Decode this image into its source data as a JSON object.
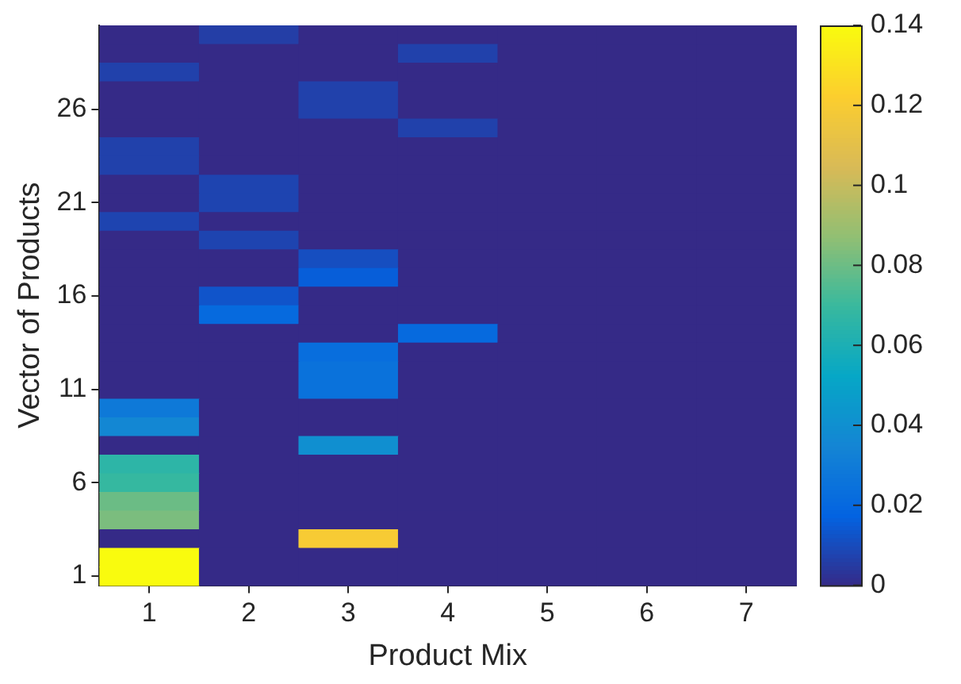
{
  "chart_data": {
    "type": "heatmap",
    "xlabel": "Product Mix",
    "ylabel": "Vector of Products",
    "categories": [
      "1",
      "2",
      "3",
      "4",
      "5",
      "6",
      "7"
    ],
    "y_categories": [
      null,
      null,
      null,
      null,
      "26",
      null,
      null,
      null,
      null,
      "21",
      null,
      null,
      null,
      null,
      "16",
      null,
      null,
      null,
      null,
      "11",
      null,
      null,
      null,
      null,
      "6",
      null,
      null,
      null,
      null,
      "1"
    ],
    "cells": [
      [
        0,
        0.006,
        0,
        0,
        0,
        0,
        0
      ],
      [
        0,
        0,
        0,
        0.007,
        0,
        0,
        0
      ],
      [
        0.007,
        0,
        0,
        0,
        0,
        0,
        0
      ],
      [
        0,
        0,
        0.007,
        0,
        0,
        0,
        0
      ],
      [
        0,
        0,
        0.007,
        0,
        0,
        0,
        0
      ],
      [
        0,
        0,
        0,
        0.007,
        0,
        0,
        0
      ],
      [
        0.007,
        0,
        0,
        0,
        0,
        0,
        0
      ],
      [
        0.007,
        0,
        0,
        0,
        0,
        0,
        0
      ],
      [
        0,
        0.008,
        0,
        0,
        0,
        0,
        0
      ],
      [
        0,
        0.008,
        0,
        0,
        0,
        0,
        0
      ],
      [
        0.008,
        0,
        0,
        0,
        0,
        0,
        0
      ],
      [
        0,
        0.008,
        0,
        0,
        0,
        0,
        0
      ],
      [
        0,
        0,
        0.011,
        0,
        0,
        0,
        0
      ],
      [
        0,
        0,
        0.016,
        0,
        0,
        0,
        0
      ],
      [
        0,
        0.013,
        0,
        0,
        0,
        0,
        0
      ],
      [
        0,
        0.021,
        0,
        0,
        0,
        0,
        0
      ],
      [
        0,
        0,
        0,
        0.021,
        0,
        0,
        0
      ],
      [
        0,
        0,
        0.023,
        0,
        0,
        0,
        0
      ],
      [
        0,
        0,
        0.025,
        0,
        0,
        0,
        0
      ],
      [
        0,
        0,
        0.025,
        0,
        0,
        0,
        0
      ],
      [
        0.029,
        0,
        0,
        0,
        0,
        0,
        0
      ],
      [
        0.036,
        0,
        0,
        0,
        0,
        0,
        0
      ],
      [
        0,
        0,
        0.04,
        0,
        0,
        0,
        0
      ],
      [
        0.066,
        0,
        0,
        0,
        0,
        0,
        0
      ],
      [
        0.069,
        0,
        0,
        0,
        0,
        0,
        0
      ],
      [
        0.08,
        0,
        0,
        0,
        0,
        0,
        0
      ],
      [
        0.083,
        0,
        0,
        0,
        0,
        0,
        0
      ],
      [
        0,
        0,
        0.12,
        0,
        0,
        0,
        0
      ],
      [
        0.14,
        0,
        0,
        0,
        0,
        0,
        0
      ],
      [
        0.14,
        0,
        0,
        0,
        0,
        0,
        0
      ]
    ],
    "clim": [
      0,
      0.14
    ],
    "cticks": [
      0,
      0.02,
      0.04,
      0.06,
      0.08,
      0.1,
      0.12,
      0.14
    ]
  }
}
